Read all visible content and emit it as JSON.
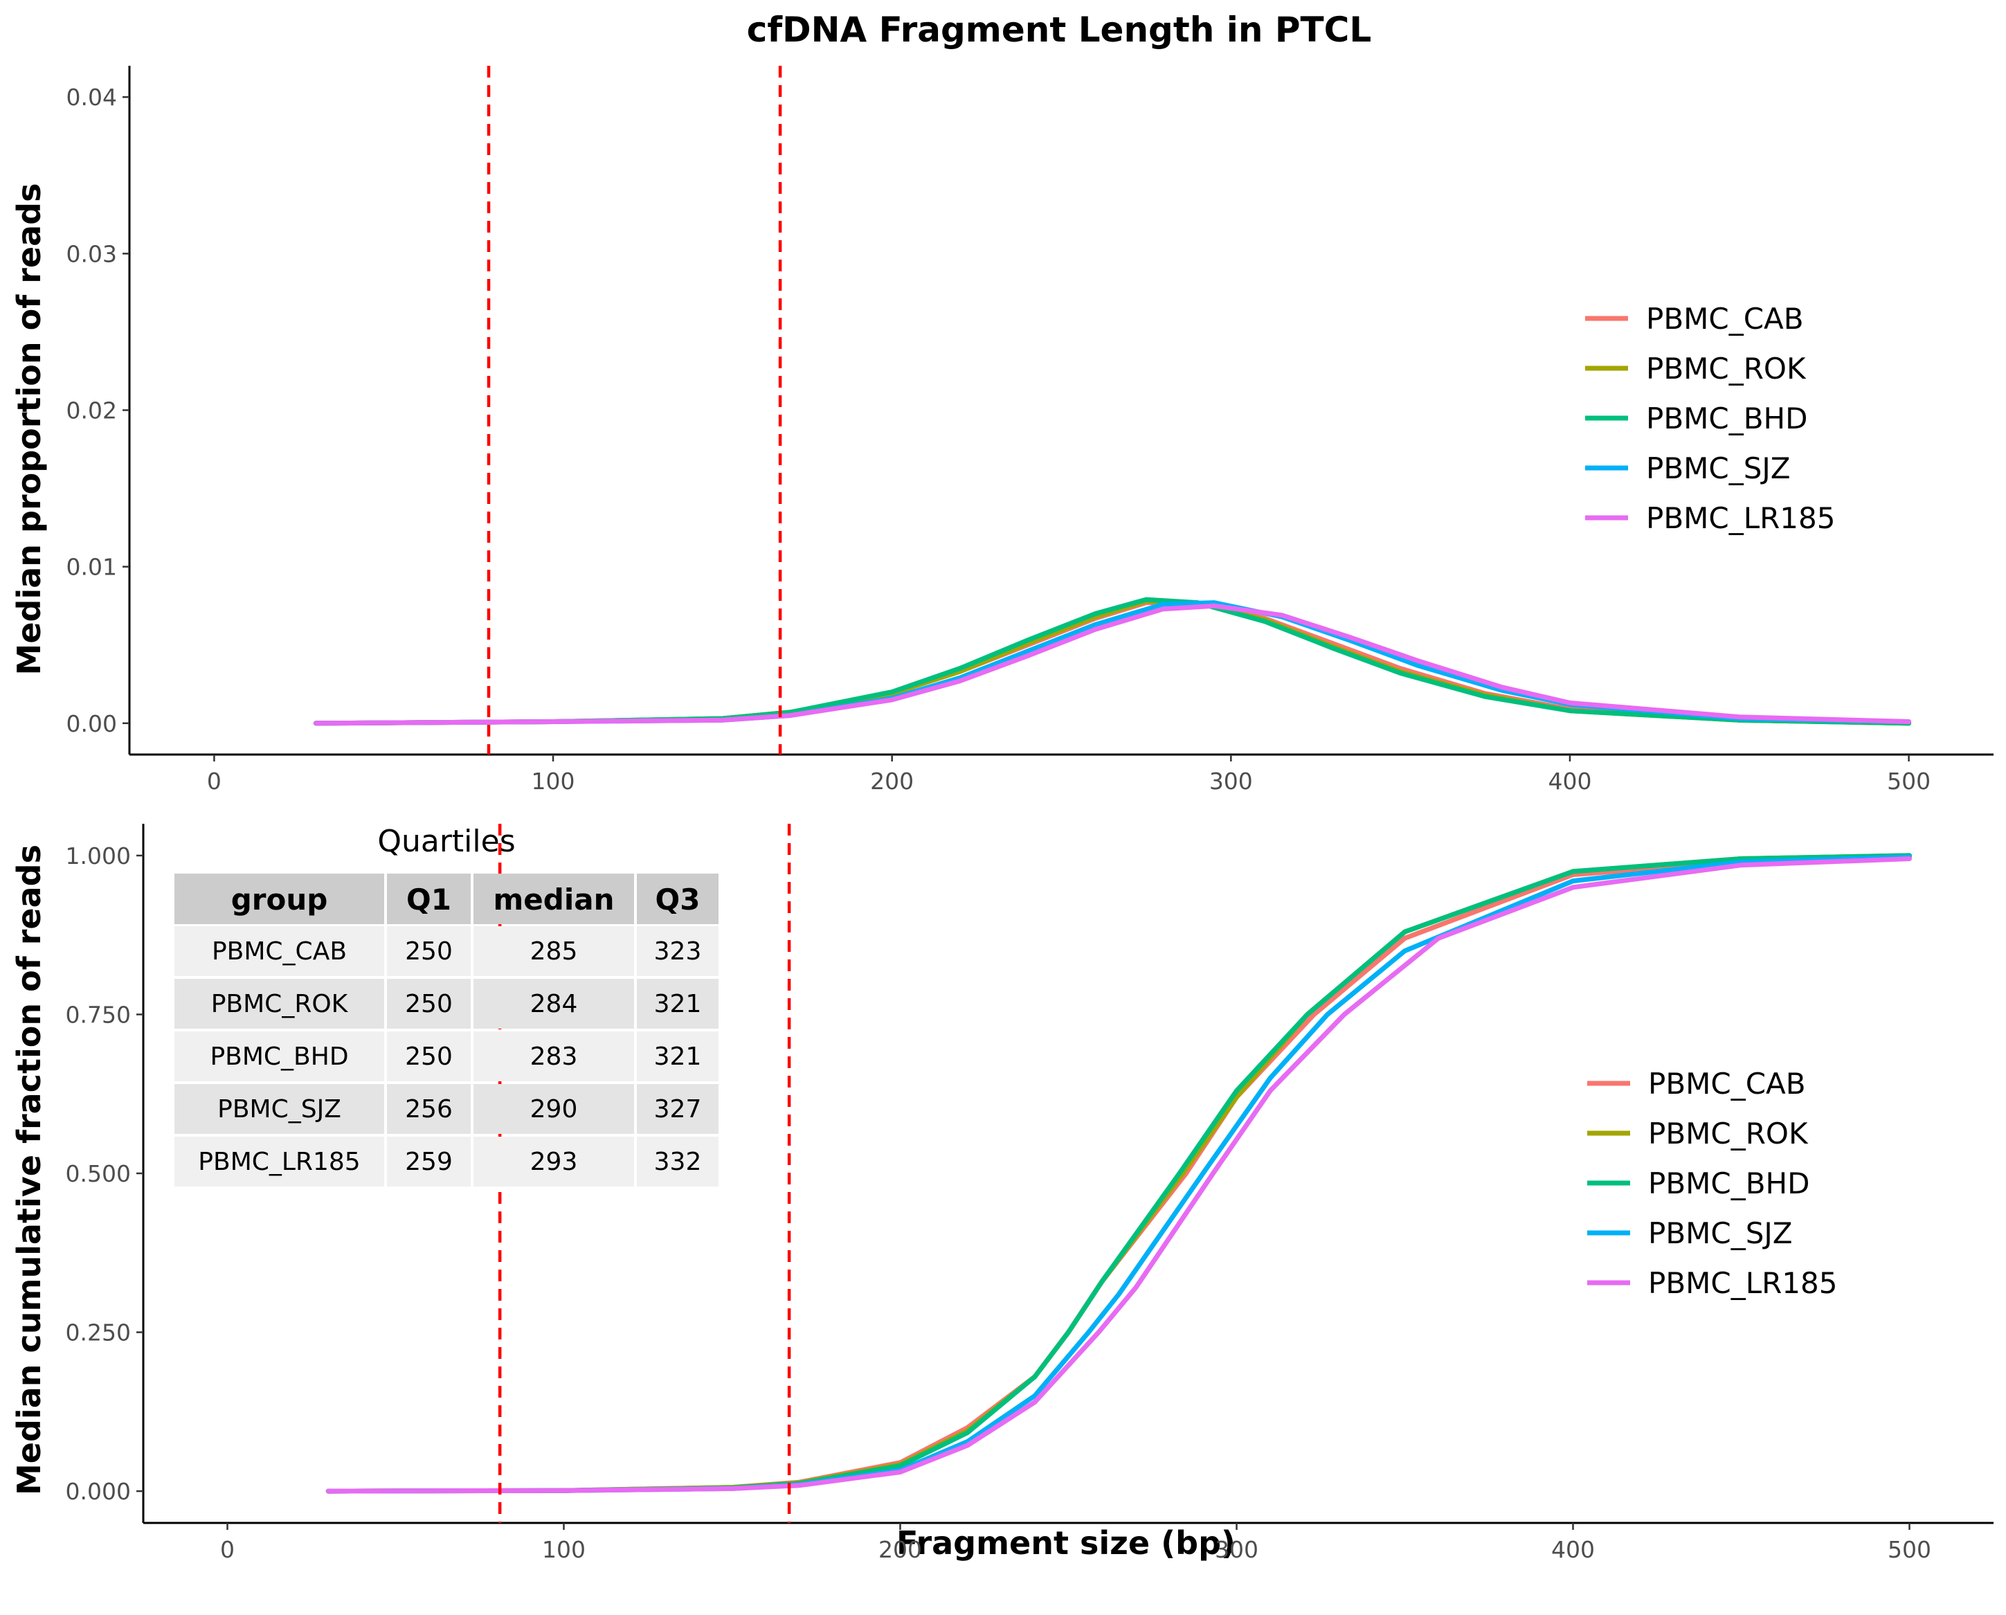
{
  "title": "cfDNA Fragment Length in PTCL",
  "colors": {
    "PBMC_CAB": "#F8766D",
    "PBMC_ROK": "#A3A500",
    "PBMC_BHD": "#00BF7D",
    "PBMC_SJZ": "#00B0F6",
    "PBMC_LR185": "#E76BF3",
    "cutoff": "#FF0000"
  },
  "chart_data": [
    {
      "type": "line",
      "title": "cfDNA Fragment Length in PTCL",
      "xlabel": "",
      "ylabel": "Median proportion of reads",
      "xlim": [
        -25,
        525
      ],
      "ylim": [
        -0.002,
        0.042
      ],
      "xticks": [
        0,
        100,
        200,
        300,
        400,
        500
      ],
      "xtick_labels": [
        "0",
        "100",
        "200",
        "300",
        "400",
        "500"
      ],
      "yticks": [
        0,
        0.01,
        0.02,
        0.03,
        0.04
      ],
      "ytick_labels": [
        "0.00",
        "0.01",
        "0.02",
        "0.03",
        "0.04"
      ],
      "vlines": [
        81,
        167
      ],
      "grid": false,
      "legend": "right",
      "series": [
        {
          "name": "PBMC_CAB",
          "x": [
            30,
            100,
            150,
            170,
            200,
            220,
            240,
            260,
            275,
            290,
            310,
            330,
            350,
            375,
            400,
            450,
            500
          ],
          "y": [
            0.0,
            0.0001,
            0.0003,
            0.0007,
            0.0019,
            0.0033,
            0.005,
            0.0067,
            0.0077,
            0.0077,
            0.0067,
            0.0051,
            0.0035,
            0.0019,
            0.0009,
            0.0002,
            0.0
          ]
        },
        {
          "name": "PBMC_ROK",
          "x": [
            30,
            100,
            150,
            170,
            200,
            220,
            240,
            260,
            275,
            290,
            310,
            330,
            350,
            375,
            400,
            450,
            500
          ],
          "y": [
            0.0,
            0.0001,
            0.0003,
            0.0007,
            0.0019,
            0.0033,
            0.0051,
            0.0068,
            0.0078,
            0.0077,
            0.0066,
            0.0049,
            0.0033,
            0.0018,
            0.0008,
            0.0002,
            0.0
          ]
        },
        {
          "name": "PBMC_BHD",
          "x": [
            30,
            100,
            150,
            170,
            200,
            220,
            240,
            260,
            275,
            290,
            310,
            330,
            350,
            375,
            400,
            450,
            500
          ],
          "y": [
            0.0,
            0.0001,
            0.0003,
            0.0007,
            0.002,
            0.0035,
            0.0053,
            0.007,
            0.0079,
            0.0077,
            0.0065,
            0.0048,
            0.0032,
            0.0017,
            0.0008,
            0.0002,
            0.0
          ]
        },
        {
          "name": "PBMC_SJZ",
          "x": [
            30,
            100,
            150,
            170,
            200,
            220,
            240,
            260,
            280,
            295,
            315,
            335,
            355,
            380,
            400,
            450,
            500
          ],
          "y": [
            0.0,
            0.0001,
            0.0002,
            0.0005,
            0.0016,
            0.0029,
            0.0046,
            0.0063,
            0.0076,
            0.0077,
            0.0068,
            0.0053,
            0.0037,
            0.0021,
            0.0012,
            0.0003,
            0.0001
          ]
        },
        {
          "name": "PBMC_LR185",
          "x": [
            30,
            100,
            150,
            170,
            200,
            220,
            240,
            260,
            280,
            295,
            315,
            335,
            355,
            380,
            400,
            450,
            500
          ],
          "y": [
            0.0,
            0.0001,
            0.0002,
            0.0005,
            0.0015,
            0.0027,
            0.0043,
            0.006,
            0.0073,
            0.0075,
            0.0069,
            0.0055,
            0.004,
            0.0023,
            0.0013,
            0.0004,
            0.0001
          ]
        }
      ]
    },
    {
      "type": "line",
      "title": "",
      "xlabel": "Fragment size (bp)",
      "ylabel": "Median cumulative fraction of reads",
      "xlim": [
        -25,
        525
      ],
      "ylim": [
        -0.05,
        1.05
      ],
      "xticks": [
        0,
        100,
        200,
        300,
        400,
        500
      ],
      "xtick_labels": [
        "0",
        "100",
        "200",
        "300",
        "400",
        "500"
      ],
      "yticks": [
        0,
        0.25,
        0.5,
        0.75,
        1.0
      ],
      "ytick_labels": [
        "0.000",
        "0.250",
        "0.500",
        "0.750",
        "1.000"
      ],
      "vlines": [
        81,
        167
      ],
      "grid": false,
      "legend": "right",
      "series": [
        {
          "name": "PBMC_CAB",
          "x": [
            30,
            100,
            150,
            170,
            200,
            220,
            240,
            250,
            260,
            285,
            300,
            323,
            350,
            400,
            450,
            500
          ],
          "y": [
            0.0,
            0.001,
            0.006,
            0.014,
            0.045,
            0.1,
            0.18,
            0.25,
            0.33,
            0.5,
            0.62,
            0.75,
            0.87,
            0.97,
            0.99,
            1.0
          ]
        },
        {
          "name": "PBMC_ROK",
          "x": [
            30,
            100,
            150,
            170,
            200,
            220,
            240,
            250,
            260,
            284,
            300,
            321,
            350,
            400,
            450,
            500
          ],
          "y": [
            0.0,
            0.001,
            0.006,
            0.013,
            0.042,
            0.095,
            0.18,
            0.25,
            0.33,
            0.5,
            0.62,
            0.75,
            0.88,
            0.975,
            0.995,
            1.0
          ]
        },
        {
          "name": "PBMC_BHD",
          "x": [
            30,
            100,
            150,
            170,
            200,
            220,
            240,
            250,
            260,
            283,
            300,
            321,
            350,
            400,
            450,
            500
          ],
          "y": [
            0.0,
            0.001,
            0.005,
            0.012,
            0.04,
            0.092,
            0.18,
            0.25,
            0.33,
            0.5,
            0.63,
            0.75,
            0.88,
            0.975,
            0.995,
            1.0
          ]
        },
        {
          "name": "PBMC_SJZ",
          "x": [
            30,
            100,
            150,
            170,
            200,
            220,
            240,
            256,
            265,
            290,
            310,
            327,
            350,
            400,
            450,
            500
          ],
          "y": [
            0.0,
            0.001,
            0.004,
            0.01,
            0.033,
            0.078,
            0.15,
            0.25,
            0.31,
            0.5,
            0.65,
            0.75,
            0.85,
            0.96,
            0.99,
            0.998
          ]
        },
        {
          "name": "PBMC_LR185",
          "x": [
            30,
            100,
            150,
            170,
            200,
            220,
            240,
            259,
            270,
            293,
            310,
            332,
            360,
            400,
            450,
            500
          ],
          "y": [
            0.0,
            0.001,
            0.004,
            0.009,
            0.03,
            0.072,
            0.14,
            0.25,
            0.32,
            0.5,
            0.63,
            0.75,
            0.87,
            0.95,
            0.985,
            0.995
          ]
        }
      ]
    }
  ],
  "table": {
    "title": "Quartiles",
    "columns": [
      "group",
      "Q1",
      "median",
      "Q3"
    ],
    "rows": [
      [
        "PBMC_CAB",
        "250",
        "285",
        "323"
      ],
      [
        "PBMC_ROK",
        "250",
        "284",
        "321"
      ],
      [
        "PBMC_BHD",
        "250",
        "283",
        "321"
      ],
      [
        "PBMC_SJZ",
        "256",
        "290",
        "327"
      ],
      [
        "PBMC_LR185",
        "259",
        "293",
        "332"
      ]
    ]
  }
}
